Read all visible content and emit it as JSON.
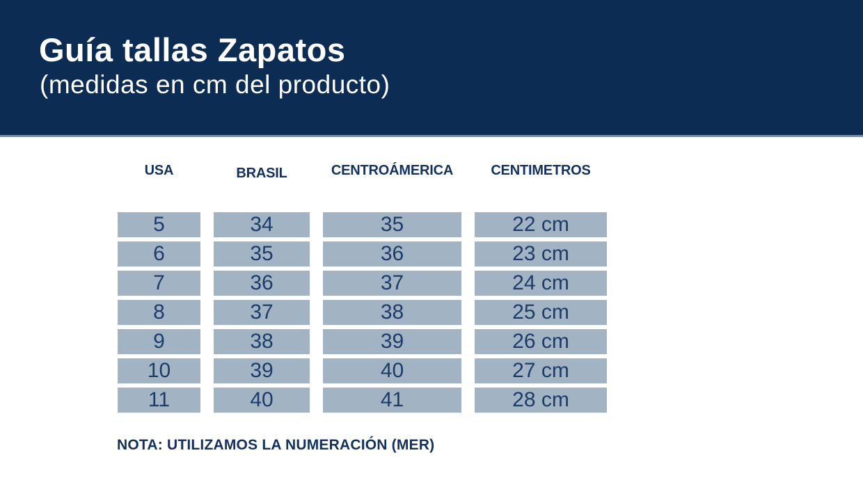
{
  "header": {
    "title": "Guía tallas Zapatos",
    "subtitle": "(medidas en cm del producto)"
  },
  "table": {
    "columns": [
      "USA",
      "BRASIL",
      "CENTROÁMERICA",
      "CENTIMETROS"
    ],
    "rows": [
      [
        "5",
        "34",
        "35",
        "22 cm"
      ],
      [
        "6",
        "35",
        "36",
        "23 cm"
      ],
      [
        "7",
        "36",
        "37",
        "24 cm"
      ],
      [
        "8",
        "37",
        "38",
        "25 cm"
      ],
      [
        "9",
        "38",
        "39",
        "26 cm"
      ],
      [
        "10",
        "39",
        "40",
        "27 cm"
      ],
      [
        "11",
        "40",
        "41",
        "28 cm"
      ]
    ]
  },
  "note": "NOTA: UTILIZAMOS LA NUMERACIÓN (MER)",
  "colors": {
    "band_navy": "#0d2c54",
    "band_edge_line": "#7590ad",
    "cell_fill": "#a2b3c4",
    "cell_text_navy": "#1e3c69",
    "header_text_navy": "#12315e",
    "title_white": "#ffffff",
    "background": "#ffffff"
  }
}
